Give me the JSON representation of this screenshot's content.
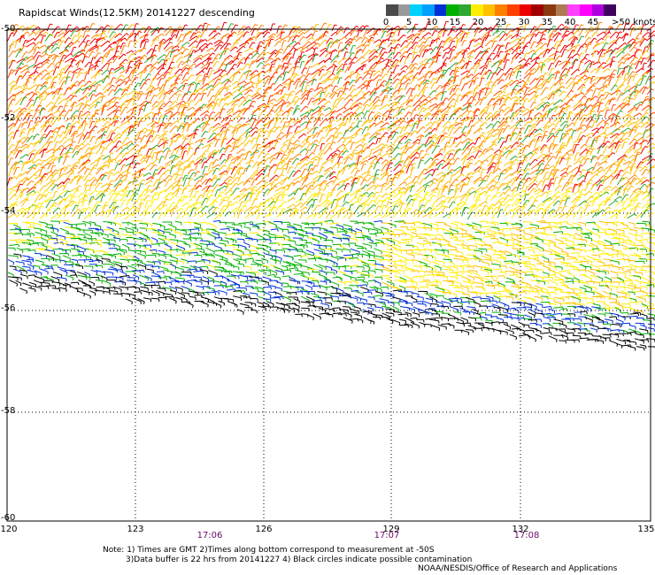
{
  "title": "Rapidscat Winds(12.5KM) 20141227 descending",
  "colorbar": {
    "colors": [
      "#4a4a4a",
      "#9a9a9a",
      "#00d0ff",
      "#00a0ff",
      "#0030d8",
      "#00b000",
      "#2ea82e",
      "#ffee00",
      "#ffc000",
      "#ff8000",
      "#ff4000",
      "#ee0000",
      "#a00000",
      "#8b3a10",
      "#b07a50",
      "#ff40ff",
      "#ff00ff",
      "#b000e0",
      "#400060"
    ],
    "labels": [
      {
        "text": "0",
        "pos": 0.0
      },
      {
        "text": "5",
        "pos": 0.1
      },
      {
        "text": "10",
        "pos": 0.2
      },
      {
        "text": "15",
        "pos": 0.3
      },
      {
        "text": "20",
        "pos": 0.4
      },
      {
        "text": "25",
        "pos": 0.5
      },
      {
        "text": "30",
        "pos": 0.6
      },
      {
        "text": "35",
        "pos": 0.7
      },
      {
        "text": "40",
        "pos": 0.8
      },
      {
        "text": "45",
        "pos": 0.9
      },
      {
        "text": ">50 knots",
        "pos": 1.08
      }
    ]
  },
  "axes": {
    "lat_ticks": [
      "-50",
      "-52",
      "-54",
      "-56",
      "-58",
      "-60"
    ],
    "lon_ticks": [
      "120",
      "123",
      "126",
      "129",
      "132",
      "135"
    ],
    "lat_range": [
      -60,
      -50
    ],
    "lon_range": [
      120,
      135
    ]
  },
  "times": [
    "17:06",
    "17:07",
    "17:08"
  ],
  "notes": {
    "line1": "Note: 1) Times are GMT 2)Times along bottom correspond to measurement at -50S",
    "line2": "3)Data buffer is 22 hrs from 20141227 4) Black circles indicate possible contamination",
    "credit": "NOAA/NESDIS/Office of Research and Applications"
  }
}
